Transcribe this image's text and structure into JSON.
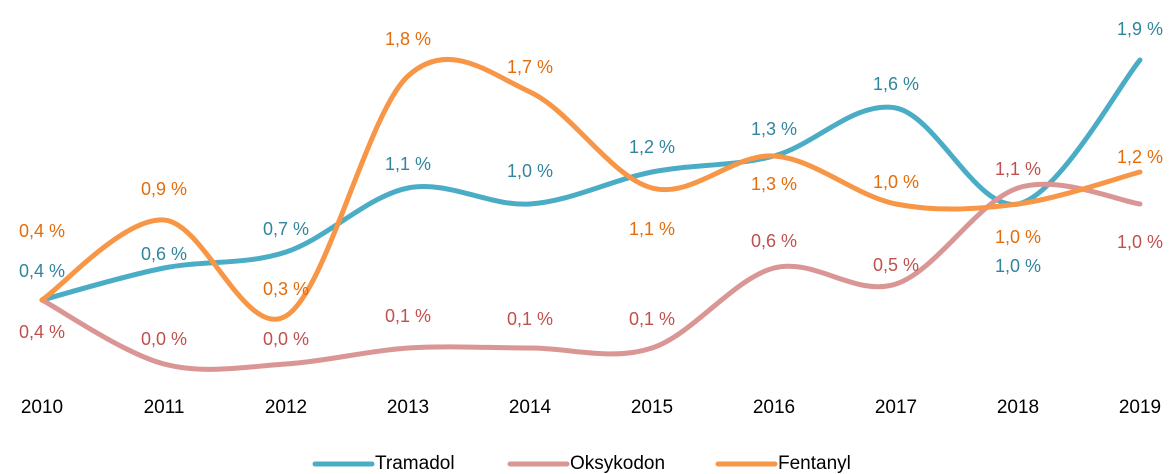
{
  "chart_data": {
    "type": "line",
    "categories": [
      "2010",
      "2011",
      "2012",
      "2013",
      "2014",
      "2015",
      "2016",
      "2017",
      "2018",
      "2019"
    ],
    "ylim": [
      -0.2,
      2.0
    ],
    "smooth": true,
    "legend": "bottom",
    "series": [
      {
        "name": "Tramadol",
        "color": "#4bacc6",
        "label_color": "#31859c",
        "values": [
          0.4,
          0.6,
          0.7,
          1.1,
          1.0,
          1.2,
          1.3,
          1.6,
          1.0,
          1.9
        ],
        "value_labels": [
          "0,4 %",
          "0,6 %",
          "0,7 %",
          "1,1 %",
          "1,0 %",
          "1,2 %",
          "1,3 %",
          "1,6 %",
          "1,0 %",
          "1,9 %"
        ]
      },
      {
        "name": "Oksykodon",
        "color": "#d99694",
        "label_color": "#c0504d",
        "values": [
          0.4,
          0.0,
          0.0,
          0.1,
          0.1,
          0.1,
          0.6,
          0.5,
          1.1,
          1.0
        ],
        "value_labels": [
          "0,4 %",
          "0,0 %",
          "0,0 %",
          "0,1 %",
          "0,1 %",
          "0,1 %",
          "0,6 %",
          "0,5 %",
          "1,1 %",
          "1,0 %"
        ]
      },
      {
        "name": "Fentanyl",
        "color": "#f79646",
        "label_color": "#e46c0a",
        "values": [
          0.4,
          0.9,
          0.3,
          1.8,
          1.7,
          1.1,
          1.3,
          1.0,
          1.0,
          1.2
        ],
        "value_labels": [
          "0,4 %",
          "0,9 %",
          "0,3 %",
          "1,8 %",
          "1,7 %",
          "1,1 %",
          "1,3 %",
          "1,0 %",
          "1,0 %",
          "1,2 %"
        ]
      }
    ]
  }
}
